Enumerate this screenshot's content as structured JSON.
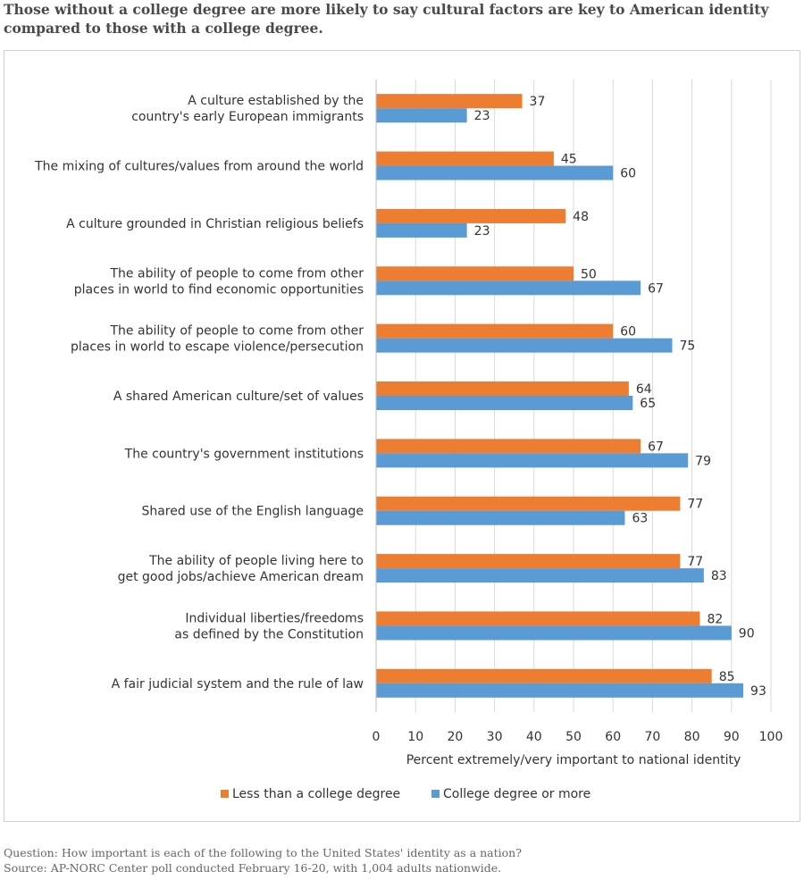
{
  "headline": {
    "line1": "Those without a college degree are more likely to say cultural factors are key to American identity",
    "line2": "compared to those with a college degree."
  },
  "footnote": {
    "question": "Question: How important is each of the following to the United States' identity as a nation?",
    "source": "Source: AP-NORC Center poll conducted February 16-20, with 1,004 adults nationwide."
  },
  "chart_data": {
    "type": "bar",
    "orientation": "horizontal",
    "categories": [
      [
        "A culture established by the",
        "country's early European immigrants"
      ],
      [
        "The mixing of cultures/values from around the world"
      ],
      [
        "A culture grounded in Christian religious beliefs"
      ],
      [
        "The ability of people to come from other",
        "places in world to find economic opportunities"
      ],
      [
        "The ability of people to come from other",
        "places in world to escape violence/persecution"
      ],
      [
        "A shared American culture/set of values"
      ],
      [
        "The country's government institutions"
      ],
      [
        "Shared use of the English language"
      ],
      [
        "The ability of people living here to",
        "get good jobs/achieve American dream"
      ],
      [
        "Individual liberties/freedoms",
        "as defined by the Constitution"
      ],
      [
        "A fair judicial system and the rule of law"
      ]
    ],
    "series": [
      {
        "name": "Less than a college degree",
        "color": "#ed7d31",
        "values": [
          37,
          45,
          48,
          50,
          60,
          64,
          67,
          77,
          77,
          82,
          85
        ]
      },
      {
        "name": "College degree or more",
        "color": "#5b9bd5",
        "values": [
          23,
          60,
          23,
          67,
          75,
          65,
          79,
          63,
          83,
          90,
          93
        ]
      }
    ],
    "xlabel": "Percent extremely/very important to national identity",
    "xlim": [
      0,
      100
    ],
    "xticks": [
      0,
      10,
      20,
      30,
      40,
      50,
      60,
      70,
      80,
      90,
      100
    ],
    "grid": true,
    "legend_position": "bottom",
    "data_labels": true
  }
}
